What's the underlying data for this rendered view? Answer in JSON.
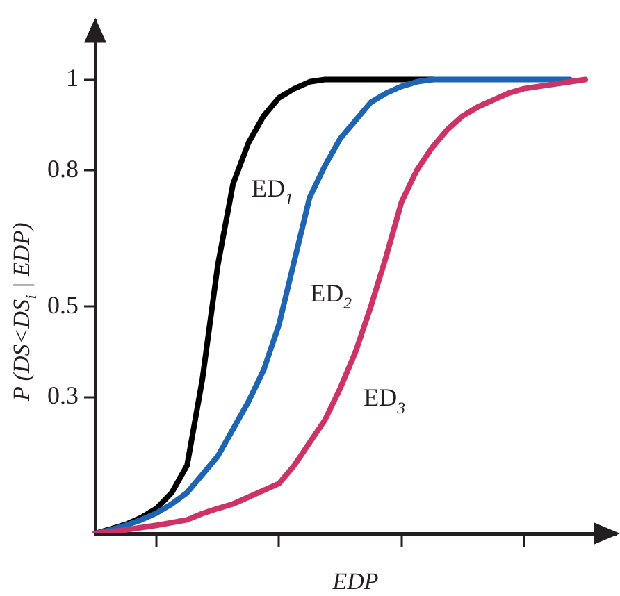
{
  "chart_data": {
    "type": "line",
    "xlabel": "EDP",
    "ylabel": "P (DS<DS$_{i}$ | EDP)",
    "categories": [
      null,
      null,
      null,
      null,
      null,
      null,
      null,
      null,
      null,
      null,
      null,
      null,
      null,
      null,
      null,
      null,
      null,
      null,
      null,
      null,
      null,
      null,
      null,
      null,
      null,
      null,
      null,
      null,
      null,
      null,
      null,
      null,
      null,
      null,
      null
    ],
    "ylim": [
      0,
      1.13
    ],
    "yticks": [
      0.3,
      0.5,
      0.8,
      1
    ],
    "tick_labels": "y",
    "grid": false,
    "legend": false,
    "marker": "none",
    "line_style": "solid",
    "series": [
      {
        "name": "ED$_{1}$",
        "color": "#000000",
        "values": [
          0,
          0.01,
          0.02,
          0.035,
          0.055,
          0.09,
          0.15,
          0.34,
          0.59,
          0.77,
          0.86,
          0.92,
          0.96,
          0.98,
          0.995,
          1,
          1,
          1,
          1,
          1,
          1,
          1,
          1,
          null,
          null,
          null,
          null,
          null,
          null,
          null,
          null,
          null,
          null,
          null,
          null
        ]
      },
      {
        "name": "ED$_{2}$",
        "color": "#1f64b0",
        "values": [
          0,
          0.008,
          0.018,
          0.03,
          0.045,
          0.065,
          0.09,
          0.13,
          0.17,
          0.23,
          0.29,
          0.36,
          0.46,
          0.6,
          0.74,
          0.81,
          0.87,
          0.91,
          0.95,
          0.97,
          0.985,
          0.995,
          1,
          1,
          1,
          1,
          1,
          1,
          1,
          1,
          1,
          1,
          null,
          null,
          null
        ]
      },
      {
        "name": "ED$_{3}$",
        "color": "#cc3366",
        "values": [
          0,
          0.004,
          0.008,
          0.013,
          0.018,
          0.024,
          0.03,
          0.044,
          0.055,
          0.065,
          0.08,
          0.095,
          0.11,
          0.15,
          0.2,
          0.25,
          0.32,
          0.4,
          0.5,
          0.61,
          0.73,
          0.8,
          0.85,
          0.89,
          0.92,
          0.94,
          0.955,
          0.97,
          0.98,
          0.985,
          0.99,
          0.995,
          1,
          null,
          null
        ]
      }
    ]
  }
}
